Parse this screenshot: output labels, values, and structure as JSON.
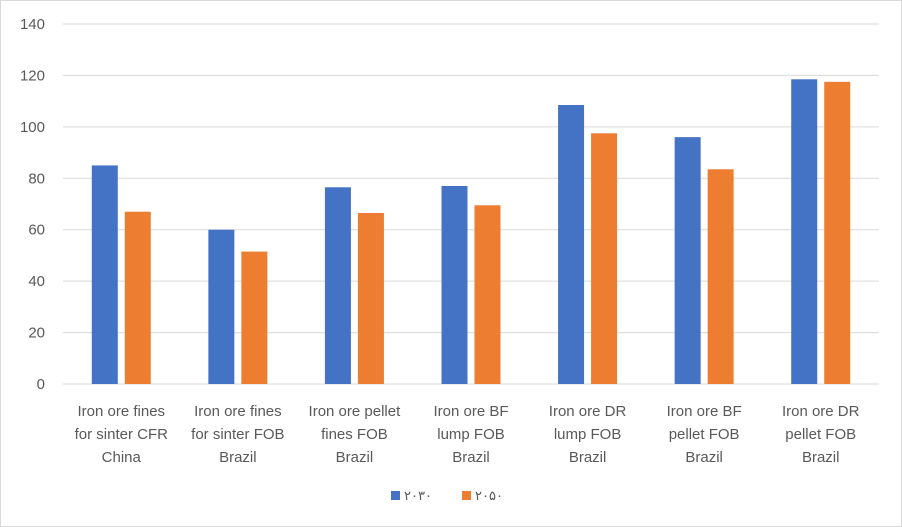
{
  "chart_data": {
    "type": "bar",
    "title": "",
    "xlabel": "",
    "ylabel": "",
    "ylim": [
      0,
      140
    ],
    "yticks": [
      0,
      20,
      40,
      60,
      80,
      100,
      120,
      140
    ],
    "grid": true,
    "legend_position": "bottom",
    "categories": [
      [
        "Iron ore fines",
        "for sinter CFR",
        "China"
      ],
      [
        "Iron ore fines",
        "for sinter FOB",
        "Brazil"
      ],
      [
        "Iron ore pellet",
        "fines FOB",
        "Brazil"
      ],
      [
        "Iron ore BF",
        "lump FOB",
        "Brazil"
      ],
      [
        "Iron ore DR",
        "lump FOB",
        "Brazil"
      ],
      [
        "Iron ore BF",
        "pellet FOB",
        "Brazil"
      ],
      [
        "Iron ore DR",
        "pellet FOB",
        "Brazil"
      ]
    ],
    "series": [
      {
        "name": "۲۰۳۰",
        "color": "#4472c4",
        "values": [
          85,
          60,
          76.5,
          77,
          108.5,
          96,
          118.5
        ]
      },
      {
        "name": "۲۰۵۰",
        "color": "#ed7d31",
        "values": [
          67,
          51.5,
          66.5,
          69.5,
          97.5,
          83.5,
          117.5
        ]
      }
    ]
  }
}
